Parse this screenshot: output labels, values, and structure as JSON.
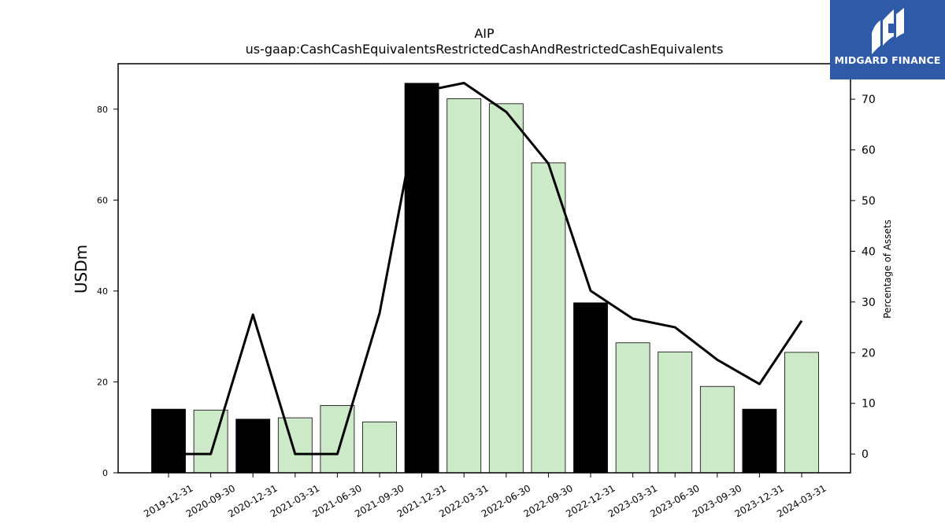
{
  "chart_data": {
    "type": "bar",
    "title": "AIP",
    "subtitle": "us-gaap:CashCashEquivalentsRestrictedCashAndRestrictedCashEquivalents",
    "ylabel": "USDm",
    "y2label": "Percentage of Assets",
    "ylim": [
      0,
      90
    ],
    "y2lim": [
      -3.7,
      77
    ],
    "yticks": [
      0,
      20,
      40,
      60,
      80
    ],
    "y2ticks": [
      0,
      10,
      20,
      30,
      40,
      50,
      60,
      70
    ],
    "categories": [
      "2019-12-31",
      "2020-09-30",
      "2020-12-31",
      "2021-03-31",
      "2021-06-30",
      "2021-09-30",
      "2021-12-31",
      "2022-03-31",
      "2022-06-30",
      "2022-09-30",
      "2022-12-31",
      "2023-03-31",
      "2023-06-30",
      "2023-09-30",
      "2023-12-31",
      "2024-03-31"
    ],
    "series": [
      {
        "type": "bar",
        "values": [
          14.0,
          13.8,
          11.8,
          12.1,
          14.8,
          11.2,
          85.7,
          82.3,
          81.2,
          68.2,
          37.4,
          28.6,
          26.6,
          19.0,
          14.0,
          26.5
        ],
        "colors": [
          "#000000",
          "#cdeac8",
          "#000000",
          "#cdeac8",
          "#cdeac8",
          "#cdeac8",
          "#000000",
          "#cdeac8",
          "#cdeac8",
          "#cdeac8",
          "#000000",
          "#cdeac8",
          "#cdeac8",
          "#cdeac8",
          "#000000",
          "#cdeac8"
        ]
      },
      {
        "type": "line",
        "axis": "right",
        "values": [
          0.0,
          0.0,
          27.5,
          0.0,
          0.0,
          27.8,
          71.5,
          73.2,
          67.5,
          57.3,
          32.2,
          26.7,
          25.0,
          18.6,
          13.8,
          26.3
        ],
        "color": "#000000"
      }
    ],
    "grid": false
  },
  "logo": {
    "brand": "MIDGARD FINANCE",
    "bg_color": "#2f5aa8"
  }
}
